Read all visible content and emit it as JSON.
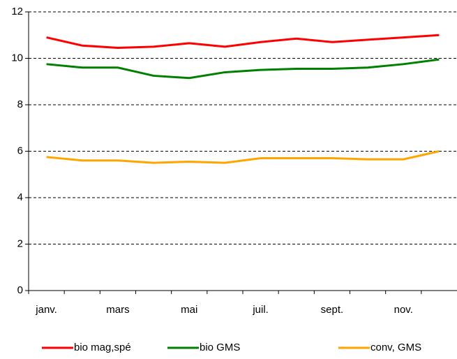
{
  "chart_data": {
    "type": "line",
    "categories": [
      "janv.",
      null,
      "mars",
      null,
      "mai",
      null,
      "juil.",
      null,
      "sept.",
      null,
      "nov.",
      null
    ],
    "series": [
      {
        "name": "bio mag,spé",
        "color": "#ff0000",
        "values": [
          10.9,
          10.55,
          10.45,
          10.5,
          10.65,
          10.5,
          10.7,
          10.85,
          10.7,
          10.8,
          10.9,
          11.0
        ]
      },
      {
        "name": "bio GMS",
        "color": "#008000",
        "values": [
          9.75,
          9.6,
          9.6,
          9.25,
          9.15,
          9.4,
          9.5,
          9.55,
          9.55,
          9.6,
          9.75,
          9.95
        ]
      },
      {
        "name": "conv, GMS",
        "color": "#ffa500",
        "values": [
          5.75,
          5.6,
          5.6,
          5.5,
          5.55,
          5.5,
          5.7,
          5.7,
          5.7,
          5.65,
          5.65,
          6.0
        ]
      }
    ],
    "ylim": [
      0,
      12
    ],
    "yticks": [
      0,
      2,
      4,
      6,
      8,
      10,
      12
    ],
    "grid": true,
    "legend": "bottom"
  }
}
